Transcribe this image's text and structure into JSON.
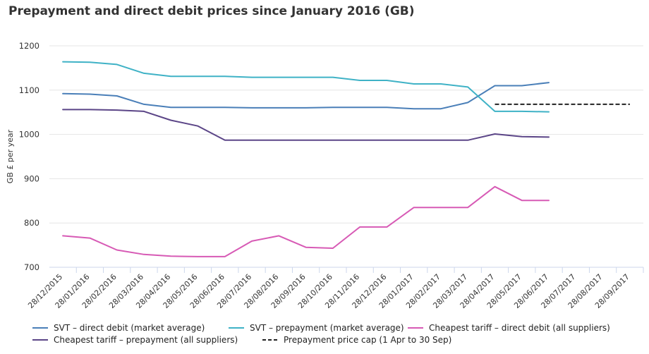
{
  "chart_data": {
    "type": "line",
    "title": "Prepayment and direct debit prices since January 2016 (GB)",
    "ylabel": "GB £ per year",
    "xlabel": "",
    "ylim": [
      700,
      1200
    ],
    "yticks": [
      700,
      800,
      900,
      1000,
      1100,
      1200
    ],
    "grid": true,
    "legend_position": "bottom",
    "categories": [
      "28/12/2015",
      "28/01/2016",
      "28/02/2016",
      "28/03/2016",
      "28/04/2016",
      "28/05/2016",
      "28/06/2016",
      "28/07/2016",
      "28/08/2016",
      "28/09/2016",
      "28/10/2016",
      "28/11/2016",
      "28/12/2016",
      "28/01/2017",
      "28/02/2017",
      "28/03/2017",
      "28/04/2017",
      "28/05/2017",
      "28/06/2017",
      "28/07/2017",
      "28/08/2017",
      "28/09/2017"
    ],
    "series": [
      {
        "name": "SVT – direct debit (market average)",
        "color": "#4a7fb8",
        "dash": false,
        "values": [
          1092,
          1091,
          1087,
          1068,
          1061,
          1061,
          1061,
          1060,
          1060,
          1060,
          1061,
          1061,
          1061,
          1058,
          1058,
          1072,
          1110,
          1110,
          1117,
          null,
          null,
          null
        ]
      },
      {
        "name": "SVT – prepayment (market average)",
        "color": "#3fb2c6",
        "dash": false,
        "values": [
          1164,
          1163,
          1158,
          1138,
          1131,
          1131,
          1131,
          1129,
          1129,
          1129,
          1129,
          1122,
          1122,
          1114,
          1114,
          1107,
          1052,
          1052,
          1051,
          null,
          null,
          null
        ]
      },
      {
        "name": "Cheapest tariff – direct debit (all suppliers)",
        "color": "#d75ab5",
        "dash": false,
        "values": [
          771,
          766,
          739,
          729,
          725,
          724,
          724,
          759,
          771,
          745,
          743,
          791,
          791,
          835,
          835,
          835,
          882,
          851,
          851,
          null,
          null,
          null
        ]
      },
      {
        "name": "Cheapest tariff – prepayment (all suppliers)",
        "color": "#5b4587",
        "dash": false,
        "values": [
          1056,
          1056,
          1055,
          1052,
          1032,
          1019,
          987,
          987,
          987,
          987,
          987,
          987,
          987,
          987,
          987,
          987,
          1001,
          995,
          994,
          null,
          null,
          null
        ]
      },
      {
        "name": "Prepayment price cap (1 Apr to 30 Sep)",
        "color": "#222222",
        "dash": true,
        "values": [
          null,
          null,
          null,
          null,
          null,
          null,
          null,
          null,
          null,
          null,
          null,
          null,
          null,
          null,
          null,
          null,
          1068,
          1068,
          1068,
          1068,
          1068,
          1068
        ]
      }
    ]
  }
}
